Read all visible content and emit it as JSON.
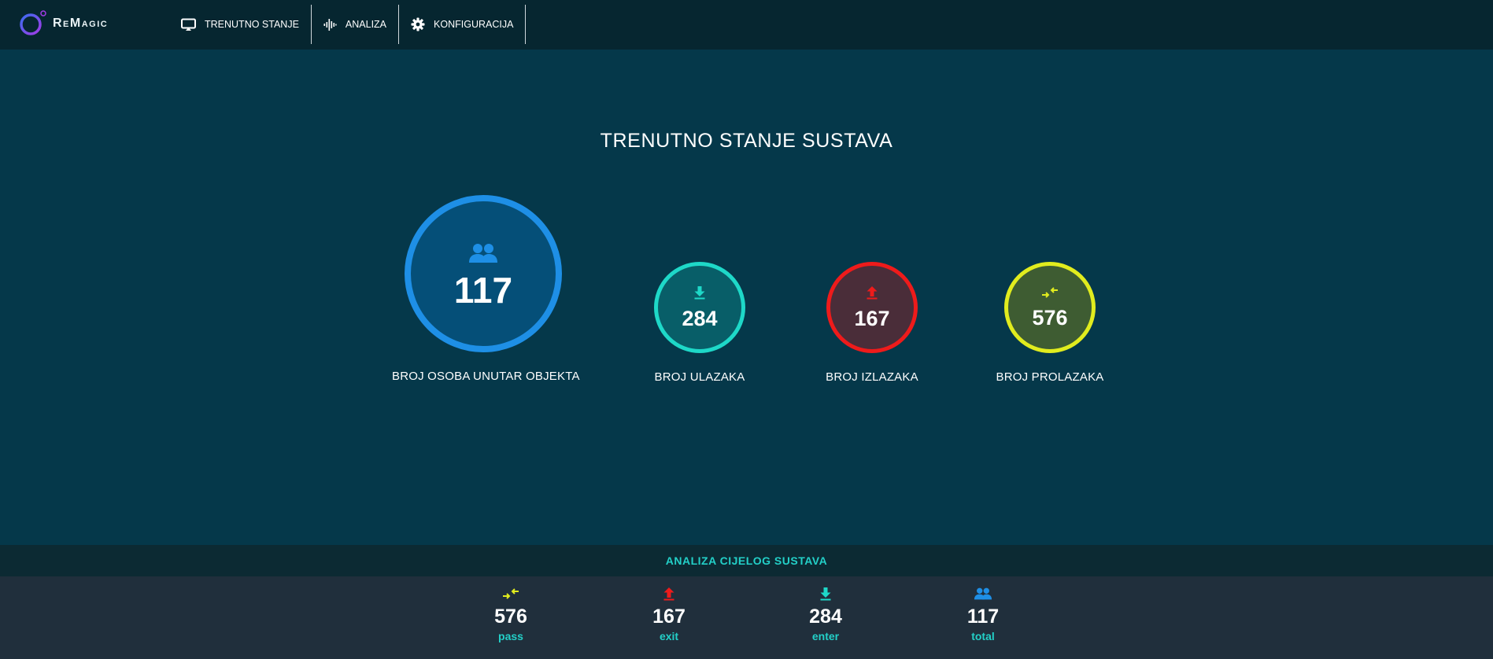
{
  "app": {
    "name": "ReMagic"
  },
  "nav": {
    "items": [
      {
        "label": "TRENUTNO STANJE",
        "icon": "monitor-icon"
      },
      {
        "label": "ANALIZA",
        "icon": "waveform-icon"
      },
      {
        "label": "KONFIGURACIJA",
        "icon": "gear-icon"
      }
    ]
  },
  "main": {
    "title": "TRENUTNO STANJE SUSTAVA",
    "stats": {
      "inside": {
        "value": "117",
        "label": "BROJ OSOBA UNUTAR OBJEKTA",
        "icon": "people-icon",
        "color": "#1e8fe6"
      },
      "enter": {
        "value": "284",
        "label": "BROJ ULAZAKA",
        "icon": "download-arrow-icon",
        "color": "#1ed8c8"
      },
      "exit": {
        "value": "167",
        "label": "BROJ IZLAZAKA",
        "icon": "upload-arrow-icon",
        "color": "#ee1b1b"
      },
      "pass": {
        "value": "576",
        "label": "BROJ PROLAZAKA",
        "icon": "pass-arrows-icon",
        "color": "#e1ec1e"
      }
    }
  },
  "bottom": {
    "title": "ANALIZA CIJELOG SUSTAVA",
    "items": [
      {
        "value": "576",
        "label": "pass",
        "icon": "pass-arrows-icon"
      },
      {
        "value": "167",
        "label": "exit",
        "icon": "upload-arrow-icon"
      },
      {
        "value": "284",
        "label": "enter",
        "icon": "download-arrow-icon"
      },
      {
        "value": "117",
        "label": "total",
        "icon": "people-icon"
      }
    ]
  }
}
